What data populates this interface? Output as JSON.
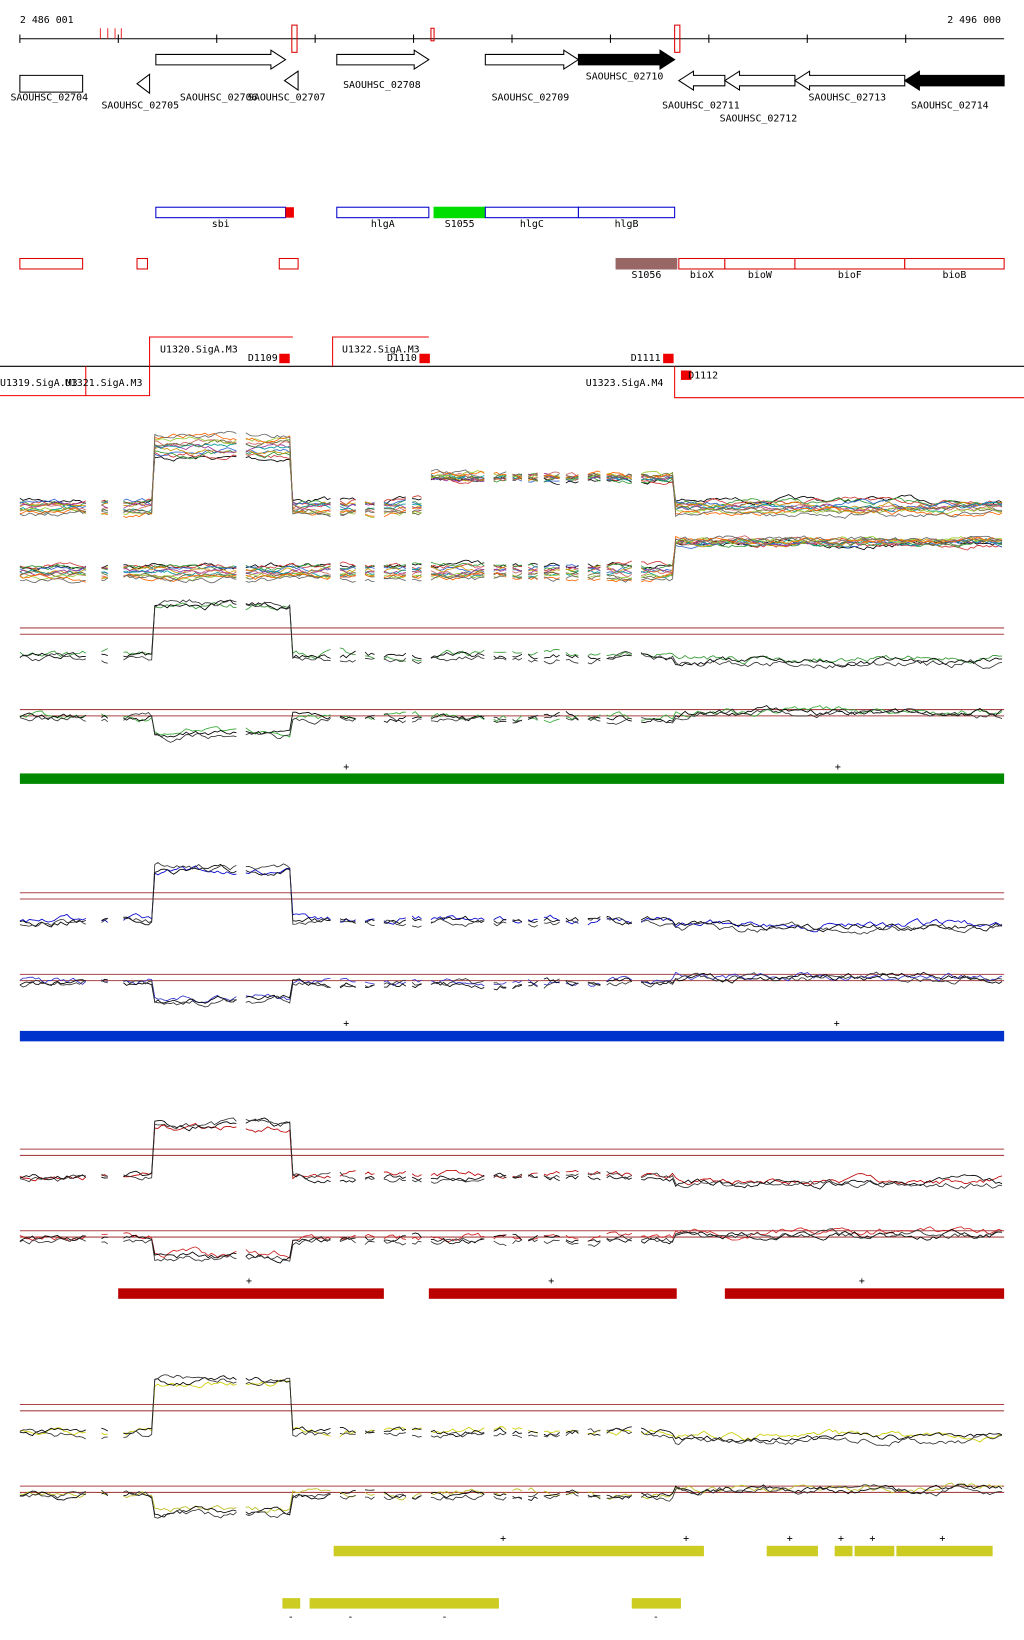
{
  "header": {
    "start": "2 486 001",
    "end": "2 496 000"
  },
  "genes": [
    "SAOUHSC_02704",
    "SAOUHSC_02705",
    "SAOUHSC_02706",
    "SAOUHSC_02707",
    "SAOUHSC_02708",
    "SAOUHSC_02709",
    "SAOUHSC_02710",
    "SAOUHSC_02711",
    "SAOUHSC_02712",
    "SAOUHSC_02713",
    "SAOUHSC_02714"
  ],
  "features": [
    "sbi",
    "hlgA",
    "S1055",
    "hlgC",
    "hlgB"
  ],
  "features_lower": [
    "S1056",
    "bioX",
    "bioW",
    "bioF",
    "bioB"
  ],
  "promoters": [
    "U1320.SigA.M3",
    "D1109",
    "U1322.SigA.M3",
    "D1110",
    "D1111",
    "U1319.SigA.M3",
    "U1321.SigA.M3",
    "U1323.SigA.M4",
    "D1112"
  ],
  "strand_marks": [
    "+",
    "+",
    "+",
    "+",
    "+",
    "+",
    "+",
    "+",
    "+",
    "+",
    "+",
    "+",
    "+",
    "-",
    "-",
    "-",
    "-"
  ]
}
